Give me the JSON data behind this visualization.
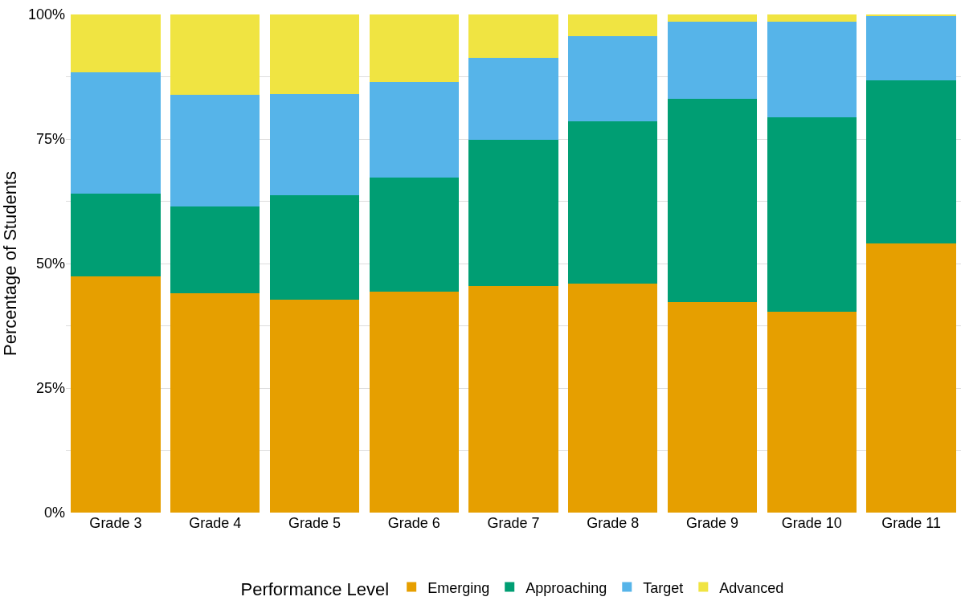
{
  "chart_data": {
    "type": "bar",
    "stacked": true,
    "ylabel": "Percentage of Students",
    "legend_title": "Performance Level",
    "legend": "bottom",
    "grid": true,
    "categories": [
      "Grade 3",
      "Grade 4",
      "Grade 5",
      "Grade 6",
      "Grade 7",
      "Grade 8",
      "Grade 9",
      "Grade 10",
      "Grade 11"
    ],
    "series": [
      {
        "name": "Emerging",
        "color": "#e69f00",
        "values": [
          47.4,
          44.1,
          42.8,
          44.4,
          45.5,
          46.0,
          42.3,
          40.4,
          54.0
        ]
      },
      {
        "name": "Approaching",
        "color": "#009e73",
        "values": [
          16.7,
          17.3,
          20.9,
          22.8,
          29.4,
          32.5,
          40.7,
          38.9,
          32.8
        ]
      },
      {
        "name": "Target",
        "color": "#56b4e9",
        "values": [
          24.3,
          22.4,
          20.4,
          19.3,
          16.4,
          17.2,
          15.6,
          19.3,
          12.9
        ]
      },
      {
        "name": "Advanced",
        "color": "#f0e442",
        "values": [
          11.6,
          16.2,
          15.9,
          13.5,
          8.7,
          4.3,
          1.4,
          1.4,
          0.3
        ]
      }
    ],
    "ylim": [
      0,
      100
    ],
    "yticks": [
      {
        "value": 0,
        "label": "0%"
      },
      {
        "value": 12.5,
        "label": null
      },
      {
        "value": 25,
        "label": "25%"
      },
      {
        "value": 37.5,
        "label": null
      },
      {
        "value": 50,
        "label": "50%"
      },
      {
        "value": 62.5,
        "label": null
      },
      {
        "value": 75,
        "label": "75%"
      },
      {
        "value": 87.5,
        "label": null
      },
      {
        "value": 100,
        "label": "100%"
      }
    ]
  }
}
